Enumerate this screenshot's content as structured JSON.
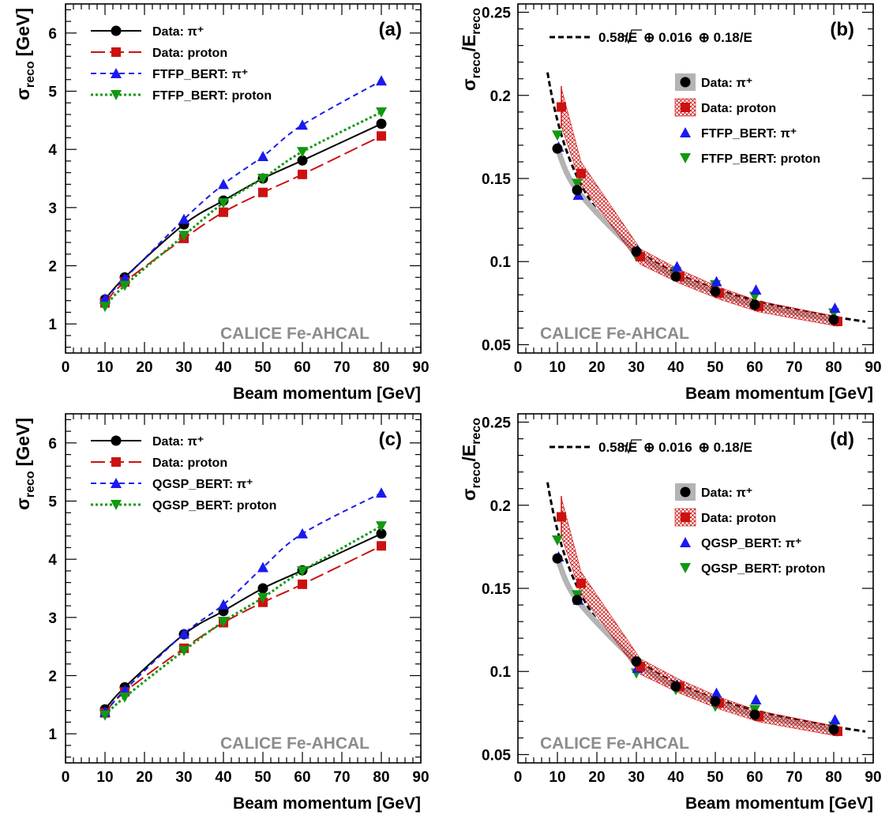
{
  "figure": {
    "colors": {
      "black": "#000000",
      "red": "#cc1111",
      "blue": "#1a1aee",
      "green": "#119911",
      "gray": "#b4b4b4",
      "watermark": "#8c8c8c"
    }
  },
  "chart_data": [
    {
      "type": "line",
      "panel_label": "(a)",
      "xlabel": "Beam momentum [GeV]",
      "ylabel": "σ",
      "ylabel_sub": "reco",
      "ylabel_unit": "[GeV]",
      "xlim": [
        0,
        90
      ],
      "ylim": [
        0.5,
        6.5
      ],
      "xticks": [
        "0",
        "10",
        "20",
        "30",
        "40",
        "50",
        "60",
        "70",
        "80",
        "90"
      ],
      "yticks": [
        "1",
        "2",
        "3",
        "4",
        "5",
        "6"
      ],
      "watermark": "CALICE Fe-AHCAL",
      "legend_position": "top-left",
      "series": [
        {
          "name": "Data: π⁺",
          "x": [
            10,
            15,
            30,
            40,
            50,
            60,
            80
          ],
          "y": [
            1.42,
            1.8,
            2.71,
            3.12,
            3.5,
            3.81,
            4.44
          ]
        },
        {
          "name": "Data: proton",
          "x": [
            10,
            15,
            30,
            40,
            50,
            60,
            80
          ],
          "y": [
            1.36,
            1.72,
            2.47,
            2.92,
            3.26,
            3.57,
            4.23
          ]
        },
        {
          "name": "FTFP_BERT: π⁺",
          "x": [
            10,
            15,
            30,
            40,
            50,
            60,
            80
          ],
          "y": [
            1.43,
            1.78,
            2.8,
            3.4,
            3.88,
            4.42,
            5.18
          ]
        },
        {
          "name": "FTFP_BERT: proton",
          "x": [
            10,
            15,
            30,
            40,
            50,
            60,
            80
          ],
          "y": [
            1.3,
            1.66,
            2.52,
            3.08,
            3.5,
            3.96,
            4.64
          ]
        }
      ]
    },
    {
      "type": "line",
      "panel_label": "(b)",
      "xlabel": "Beam momentum [GeV]",
      "ylabel": "σ",
      "ylabel_sub": "reco",
      "ylabel_mid": "/E",
      "ylabel_sub2": "reco",
      "xlim": [
        0,
        90
      ],
      "ylim": [
        0.045,
        0.255
      ],
      "xticks": [
        "0",
        "10",
        "20",
        "30",
        "40",
        "50",
        "60",
        "70",
        "80",
        "90"
      ],
      "yticks": [
        "0.05",
        "0.1",
        "0.15",
        "0.2",
        "0.25"
      ],
      "ytick_values": [
        0.05,
        0.1,
        0.15,
        0.2,
        0.25
      ],
      "watermark": "CALICE Fe-AHCAL",
      "legend_position": "top-right",
      "fit_label": {
        "a": "0.58/",
        "b": "E",
        "c": "⊕ 0.016",
        "d": "⊕ 0.18/E"
      },
      "fit_params": {
        "stochastic": 0.58,
        "constant": 0.016,
        "noise": 0.18
      },
      "series": [
        {
          "name": "Data: π⁺",
          "x": [
            10,
            15,
            30,
            40,
            50,
            60,
            80
          ],
          "y": [
            0.168,
            0.143,
            0.106,
            0.091,
            0.082,
            0.074,
            0.065
          ]
        },
        {
          "name": "Data: proton",
          "x": [
            11,
            16,
            31,
            41,
            51,
            61,
            81
          ],
          "y": [
            0.193,
            0.153,
            0.103,
            0.091,
            0.081,
            0.073,
            0.064
          ]
        },
        {
          "name": "FTFP_BERT: π⁺",
          "x": [
            10.3,
            15.3,
            30.3,
            40.3,
            50.3,
            60.3,
            80.3
          ],
          "y": [
            0.169,
            0.14,
            0.107,
            0.097,
            0.088,
            0.083,
            0.072
          ]
        },
        {
          "name": "FTFP_BERT: proton",
          "x": [
            10,
            15,
            30,
            40,
            50,
            60,
            80
          ],
          "y": [
            0.176,
            0.147,
            0.103,
            0.094,
            0.086,
            0.079,
            0.069
          ]
        }
      ]
    },
    {
      "type": "line",
      "panel_label": "(c)",
      "xlabel": "Beam momentum [GeV]",
      "ylabel": "σ",
      "ylabel_sub": "reco",
      "ylabel_unit": "[GeV]",
      "xlim": [
        0,
        90
      ],
      "ylim": [
        0.5,
        6.5
      ],
      "xticks": [
        "0",
        "10",
        "20",
        "30",
        "40",
        "50",
        "60",
        "70",
        "80",
        "90"
      ],
      "yticks": [
        "1",
        "2",
        "3",
        "4",
        "5",
        "6"
      ],
      "watermark": "CALICE Fe-AHCAL",
      "legend_position": "top-left",
      "series": [
        {
          "name": "Data: π⁺",
          "x": [
            10,
            15,
            30,
            40,
            50,
            60,
            80
          ],
          "y": [
            1.42,
            1.8,
            2.71,
            3.11,
            3.5,
            3.81,
            4.44
          ]
        },
        {
          "name": "Data: proton",
          "x": [
            10,
            15,
            30,
            40,
            50,
            60,
            80
          ],
          "y": [
            1.36,
            1.72,
            2.47,
            2.91,
            3.26,
            3.57,
            4.23
          ]
        },
        {
          "name": "QGSP_BERT: π⁺",
          "x": [
            10,
            15,
            30,
            40,
            50,
            60,
            80
          ],
          "y": [
            1.37,
            1.75,
            2.72,
            3.22,
            3.86,
            4.44,
            5.14
          ]
        },
        {
          "name": "QGSP_BERT: proton",
          "x": [
            10,
            15,
            30,
            40,
            50,
            60,
            80
          ],
          "y": [
            1.32,
            1.63,
            2.43,
            2.93,
            3.34,
            3.8,
            4.57
          ]
        }
      ]
    },
    {
      "type": "line",
      "panel_label": "(d)",
      "xlabel": "Beam momentum [GeV]",
      "ylabel": "σ",
      "ylabel_sub": "reco",
      "ylabel_mid": "/E",
      "ylabel_sub2": "reco",
      "xlim": [
        0,
        90
      ],
      "ylim": [
        0.045,
        0.255
      ],
      "xticks": [
        "0",
        "10",
        "20",
        "30",
        "40",
        "50",
        "60",
        "70",
        "80",
        "90"
      ],
      "yticks": [
        "0.05",
        "0.1",
        "0.15",
        "0.2",
        "0.25"
      ],
      "ytick_values": [
        0.05,
        0.1,
        0.15,
        0.2,
        0.25
      ],
      "watermark": "CALICE Fe-AHCAL",
      "legend_position": "top-right",
      "fit_label": {
        "a": "0.58/",
        "b": "E",
        "c": "⊕ 0.016",
        "d": "⊕ 0.18/E"
      },
      "fit_params": {
        "stochastic": 0.58,
        "constant": 0.016,
        "noise": 0.18
      },
      "series": [
        {
          "name": "Data: π⁺",
          "x": [
            10,
            15,
            30,
            40,
            50,
            60,
            80
          ],
          "y": [
            0.168,
            0.143,
            0.106,
            0.091,
            0.082,
            0.074,
            0.065
          ]
        },
        {
          "name": "Data: proton",
          "x": [
            11,
            16,
            31,
            41,
            51,
            61,
            81
          ],
          "y": [
            0.193,
            0.153,
            0.103,
            0.091,
            0.081,
            0.073,
            0.064
          ]
        },
        {
          "name": "QGSP_BERT: π⁺",
          "x": [
            10.3,
            15.3,
            30.3,
            40.3,
            50.3,
            60.3,
            80.3
          ],
          "y": [
            0.169,
            0.143,
            0.102,
            0.092,
            0.087,
            0.083,
            0.071
          ]
        },
        {
          "name": "QGSP_BERT: proton",
          "x": [
            10,
            15,
            30,
            40,
            50,
            60,
            80
          ],
          "y": [
            0.179,
            0.146,
            0.099,
            0.089,
            0.079,
            0.077,
            0.067
          ]
        }
      ]
    }
  ]
}
